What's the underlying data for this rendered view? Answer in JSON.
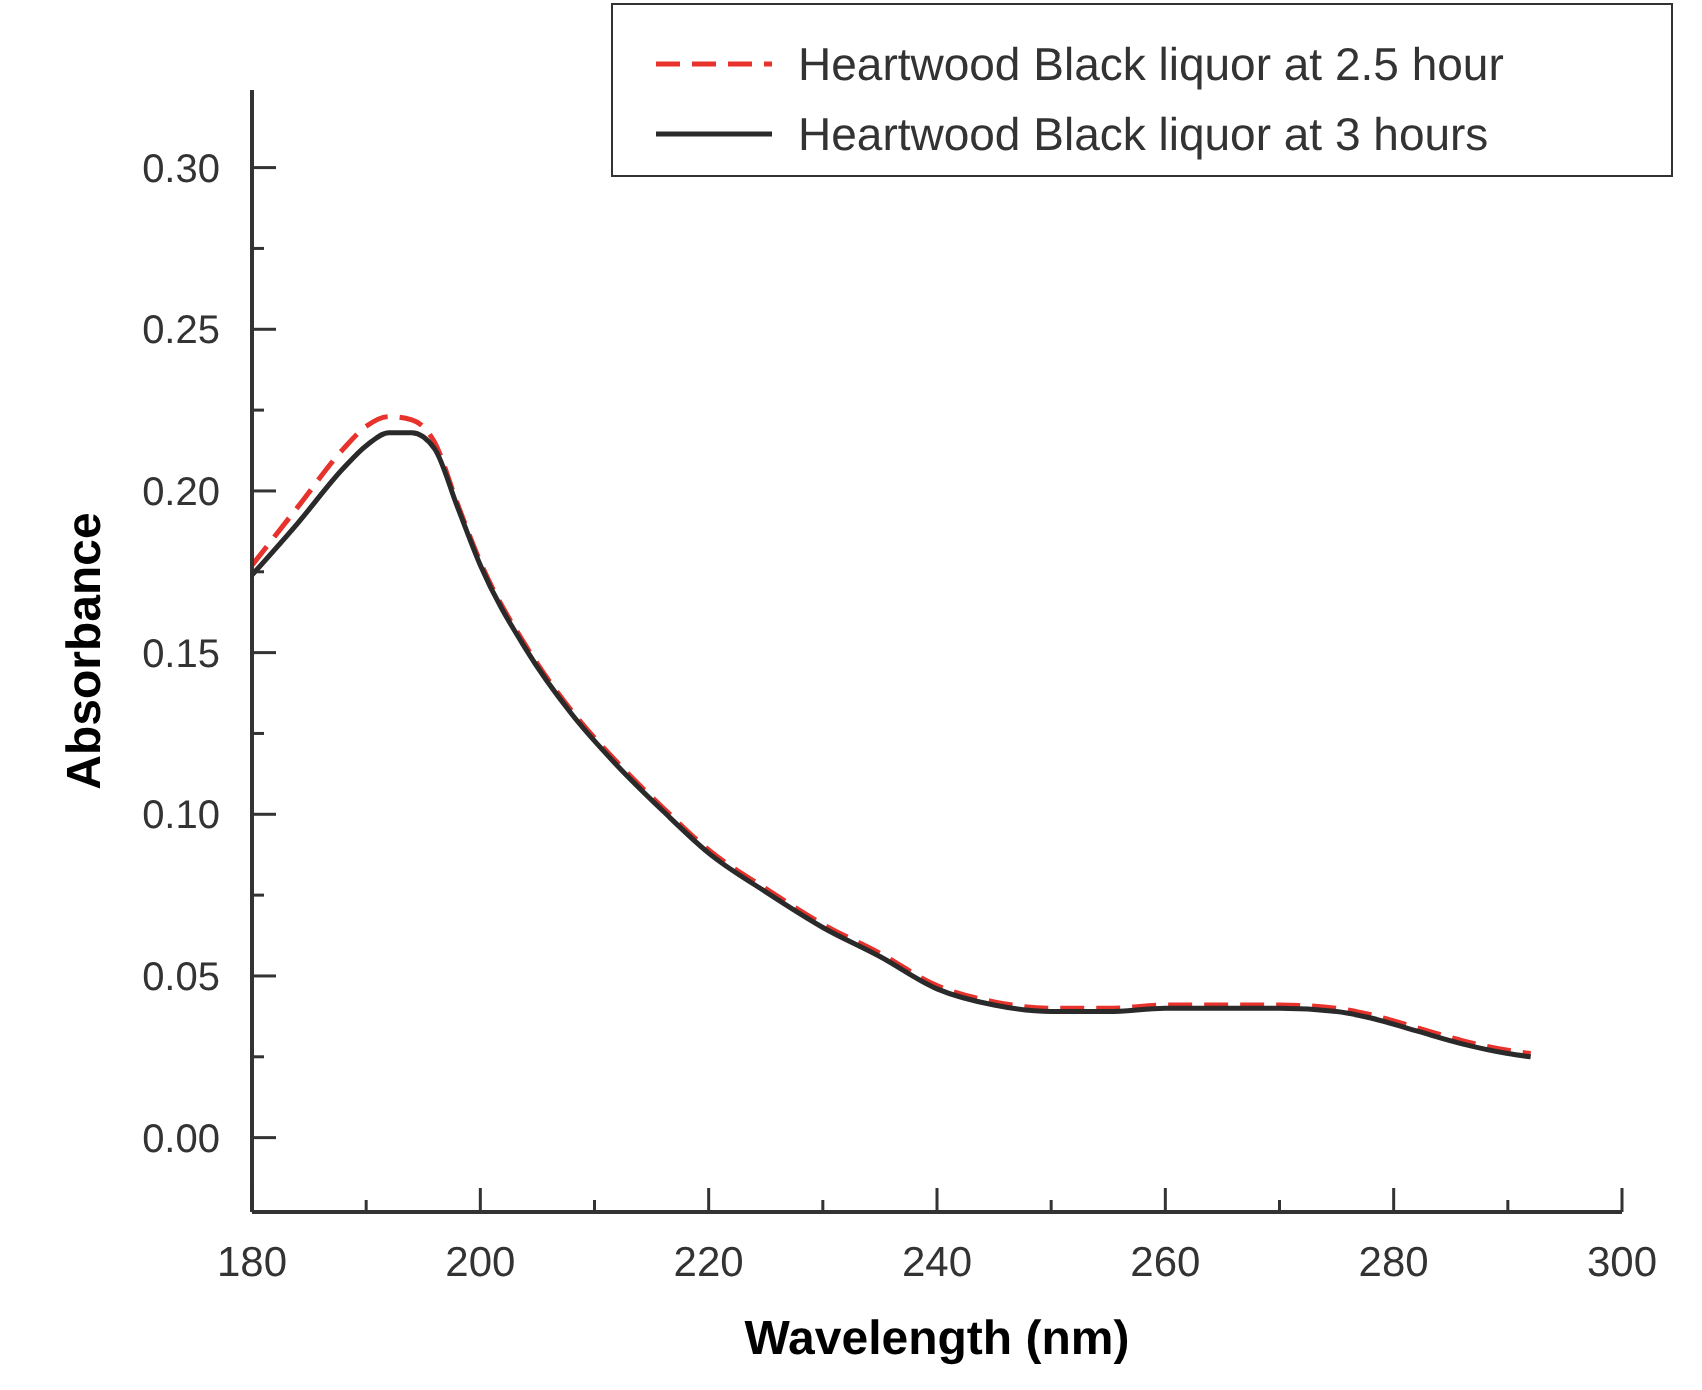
{
  "chart_data": {
    "type": "line",
    "xlabel": "Wavelength (nm)",
    "ylabel": "Absorbance",
    "xlim": [
      180,
      300
    ],
    "ylim": [
      -0.023,
      0.324
    ],
    "xticks": [
      180,
      {
        "value": 190,
        "label": null
      },
      200,
      {
        "value": 210,
        "label": null
      },
      220,
      {
        "value": 230,
        "label": null
      },
      240,
      {
        "value": 250,
        "label": null
      },
      260,
      {
        "value": 270,
        "label": null
      },
      280,
      {
        "value": 290,
        "label": null
      },
      300
    ],
    "yticks": [
      {
        "value": 0,
        "label": "0.00"
      },
      {
        "value": 0.025,
        "label": null
      },
      {
        "value": 0.05,
        "label": "0.05"
      },
      {
        "value": 0.075,
        "label": null
      },
      {
        "value": 0.1,
        "label": "0.10"
      },
      {
        "value": 0.125,
        "label": null
      },
      {
        "value": 0.15,
        "label": "0.15"
      },
      {
        "value": 0.175,
        "label": null
      },
      {
        "value": 0.2,
        "label": "0.20"
      },
      {
        "value": 0.225,
        "label": null
      },
      {
        "value": 0.25,
        "label": "0.25"
      },
      {
        "value": 0.275,
        "label": null
      },
      {
        "value": 0.3,
        "label": "0.30"
      }
    ],
    "grid": false,
    "legend": "top right",
    "x": [
      180,
      184,
      188,
      190,
      192,
      194,
      196,
      198,
      200,
      204,
      208,
      212,
      216,
      220,
      225,
      230,
      235,
      240,
      245,
      250,
      255,
      260,
      265,
      270,
      275,
      278,
      282,
      286,
      290,
      292
    ],
    "series": [
      {
        "name": "Heartwood Black liquor at 2.5 hour",
        "color": "#e8322c",
        "line_style": "dashed",
        "values": [
          0.177,
          0.195,
          0.213,
          0.22,
          0.223,
          0.222,
          0.215,
          0.196,
          0.178,
          0.152,
          0.132,
          0.116,
          0.102,
          0.089,
          0.077,
          0.066,
          0.057,
          0.047,
          0.042,
          0.04,
          0.04,
          0.041,
          0.041,
          0.041,
          0.04,
          0.038,
          0.034,
          0.03,
          0.027,
          0.026
        ]
      },
      {
        "name": "Heartwood Black liquor at 3 hours",
        "color": "#2a2a2a",
        "line_style": "solid",
        "values": [
          0.174,
          0.19,
          0.207,
          0.214,
          0.218,
          0.218,
          0.213,
          0.195,
          0.177,
          0.151,
          0.131,
          0.115,
          0.101,
          0.088,
          0.076,
          0.065,
          0.056,
          0.046,
          0.041,
          0.039,
          0.039,
          0.04,
          0.04,
          0.04,
          0.039,
          0.037,
          0.033,
          0.029,
          0.026,
          0.025
        ]
      }
    ]
  }
}
